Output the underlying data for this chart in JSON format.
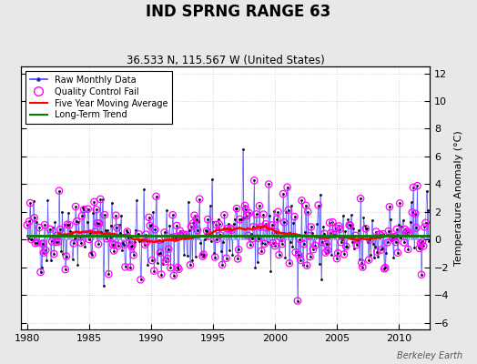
{
  "title": "IND SPRNG RANGE 63",
  "subtitle": "36.533 N, 115.567 W (United States)",
  "ylabel": "Temperature Anomaly (°C)",
  "credit": "Berkeley Earth",
  "xlim": [
    1979.5,
    2012.5
  ],
  "ylim": [
    -6.5,
    12.5
  ],
  "yticks": [
    -6,
    -4,
    -2,
    0,
    2,
    4,
    6,
    8,
    10,
    12
  ],
  "xticks": [
    1980,
    1985,
    1990,
    1995,
    2000,
    2005,
    2010
  ],
  "bg_color": "#ffffff",
  "fig_color": "#e8e8e8",
  "raw_color": "#4040ff",
  "qc_color": "magenta",
  "moving_avg_color": "red",
  "trend_color": "green",
  "seed": 42,
  "qc_seed": 43
}
